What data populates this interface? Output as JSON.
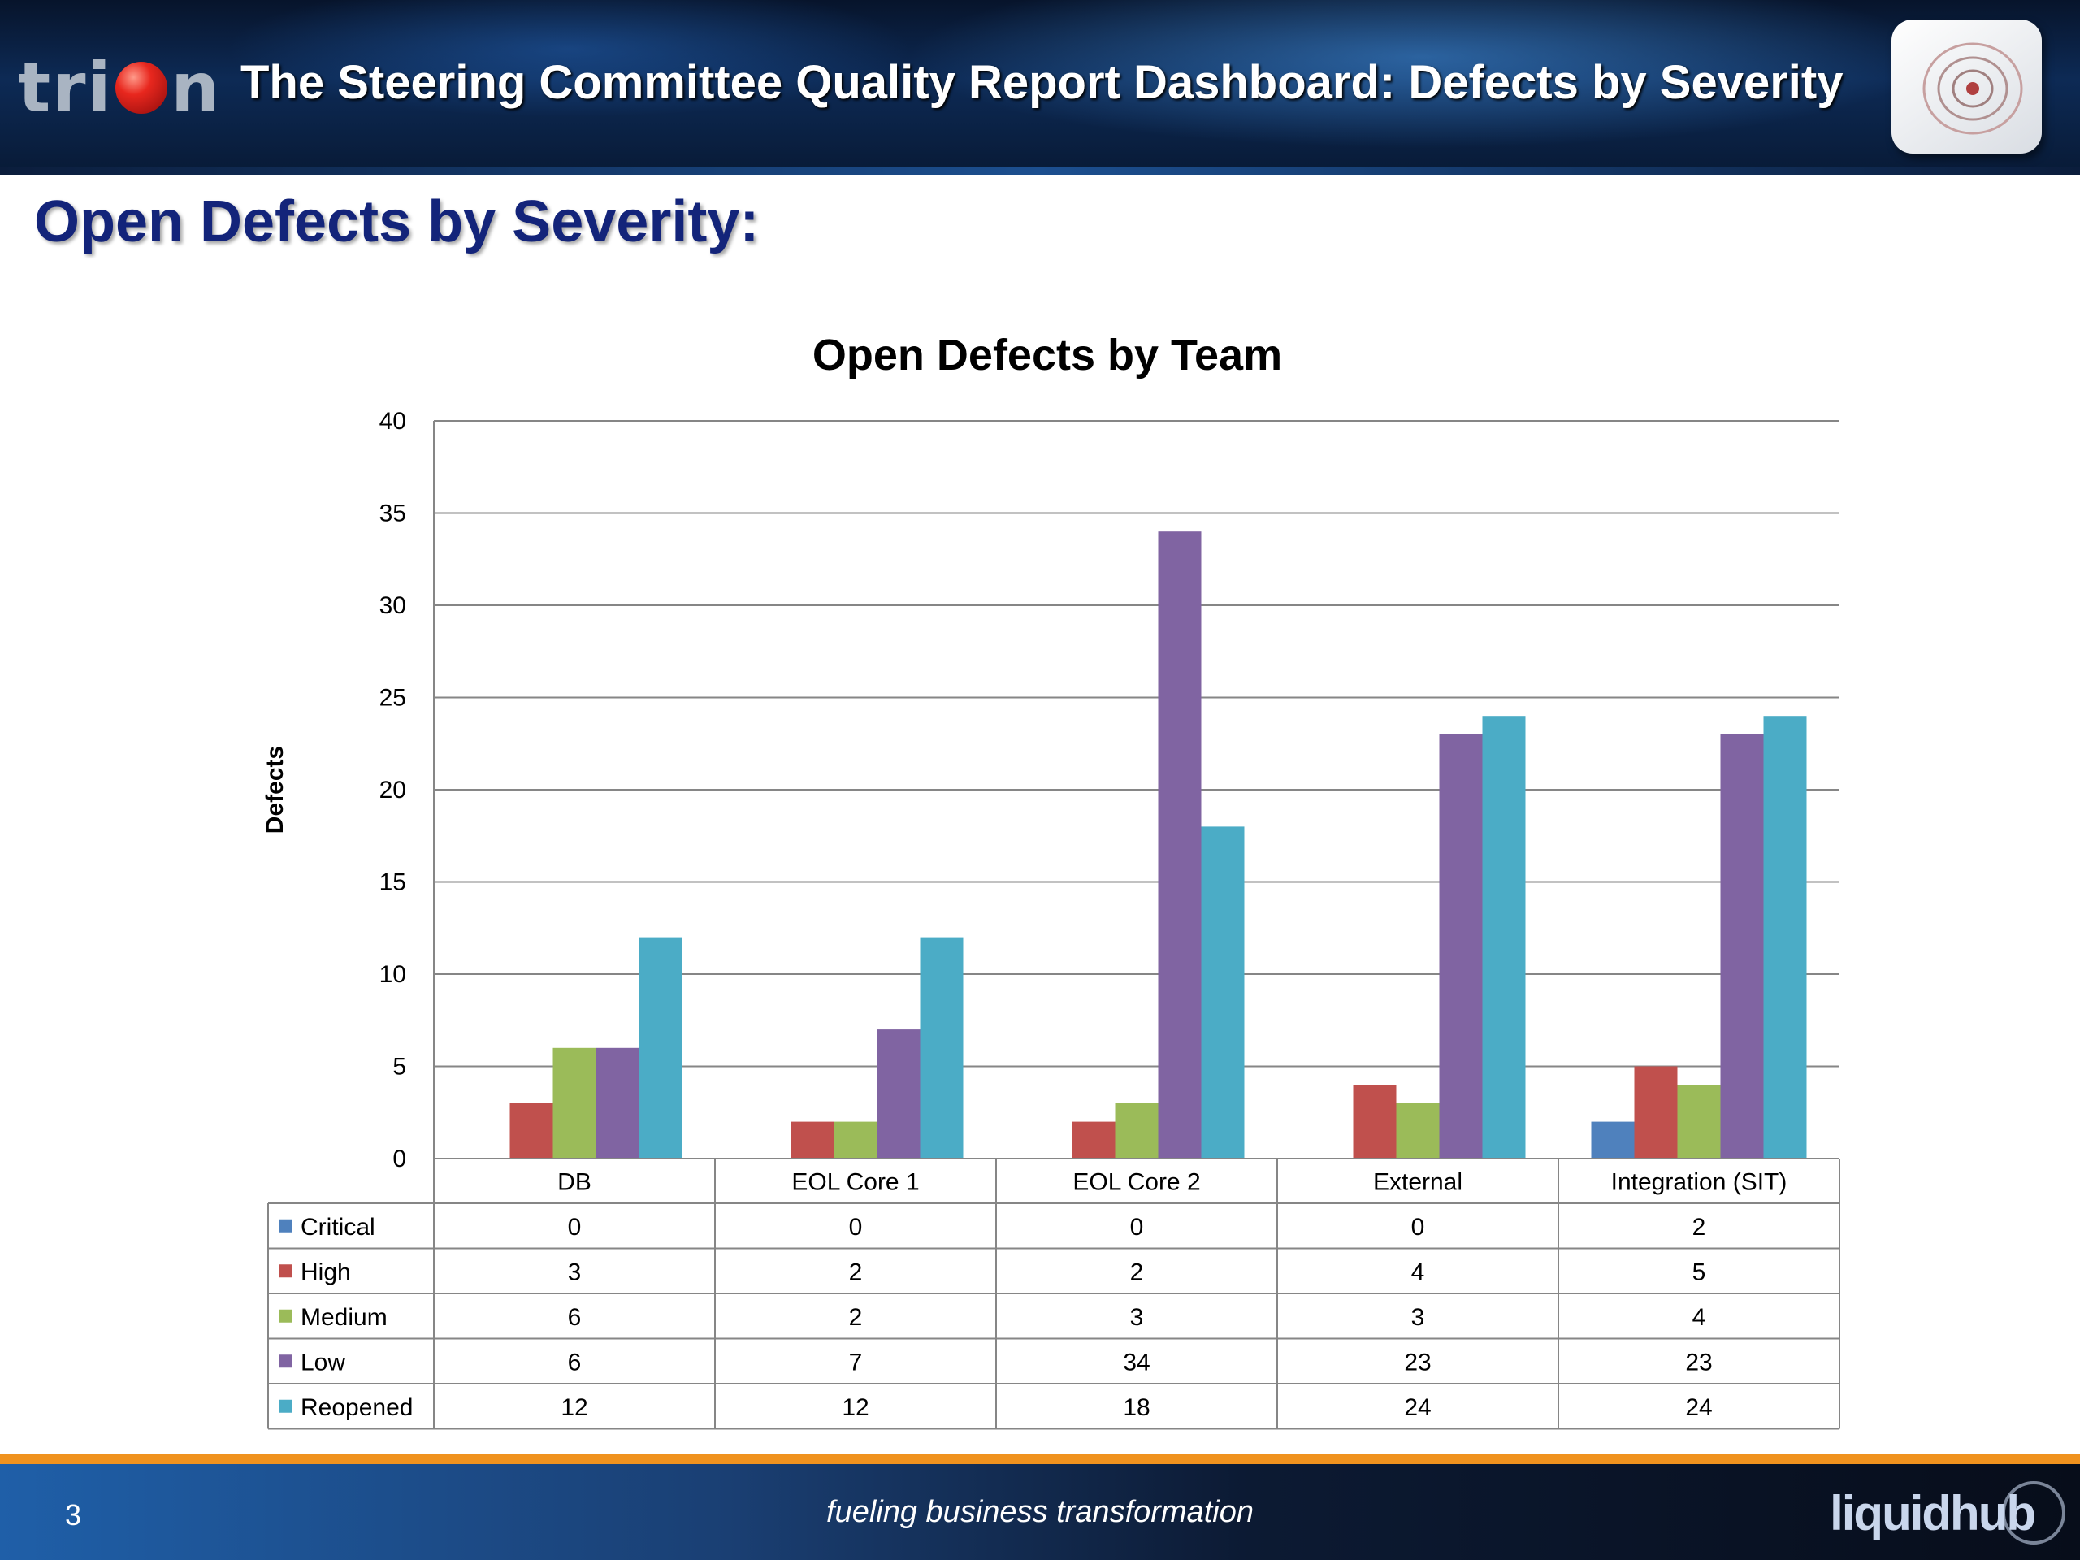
{
  "header": {
    "logo_text_left": "tri",
    "logo_text_right": "n",
    "title": "The Steering Committee Quality Report Dashboard: Defects by Severity"
  },
  "page_heading": "Open Defects by Severity:",
  "chart_data": {
    "type": "bar",
    "title": "Open Defects by Team",
    "xlabel": "",
    "ylabel": "Defects",
    "ylim": [
      0,
      40
    ],
    "yticks": [
      0,
      5,
      10,
      15,
      20,
      25,
      30,
      35,
      40
    ],
    "grid": true,
    "legend": "data-table",
    "categories": [
      "DB",
      "EOL Core 1",
      "EOL Core 2",
      "External",
      "Integration (SIT)"
    ],
    "series": [
      {
        "name": "Critical",
        "color": "#4f81bd",
        "values": [
          0,
          0,
          0,
          0,
          2
        ]
      },
      {
        "name": "High",
        "color": "#c0504d",
        "values": [
          3,
          2,
          2,
          4,
          5
        ]
      },
      {
        "name": "Medium",
        "color": "#9bbb59",
        "values": [
          6,
          2,
          3,
          3,
          4
        ]
      },
      {
        "name": "Low",
        "color": "#8064a2",
        "values": [
          6,
          7,
          34,
          23,
          23
        ]
      },
      {
        "name": "Reopened",
        "color": "#4bacc6",
        "values": [
          12,
          12,
          18,
          24,
          24
        ]
      }
    ]
  },
  "footer": {
    "page_number": "3",
    "tagline": "fueling business transformation",
    "logo_text": "liquidhub"
  },
  "icons": {
    "header_logo": "trion-logo-icon",
    "header_badge": "diagram-badge-icon",
    "footer_logo": "liquidhub-logo-icon"
  }
}
